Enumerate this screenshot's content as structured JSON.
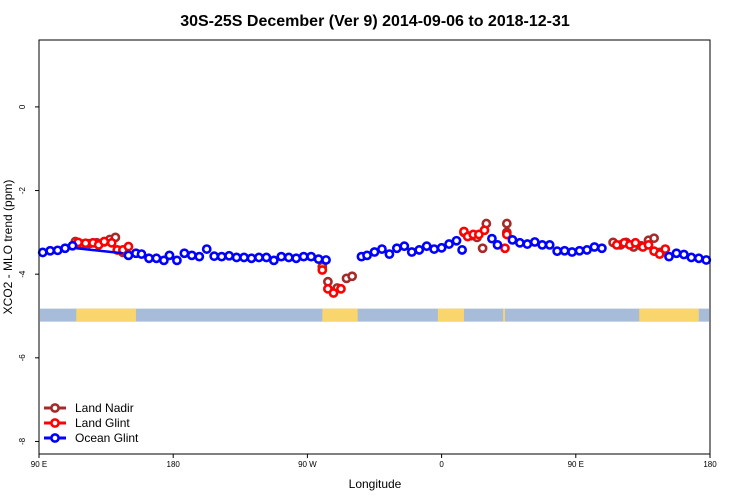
{
  "chart_data": {
    "type": "scatter",
    "title": "30S-25S December (Ver 9)   2014-09-06 to 2018-12-31",
    "xlabel": "Longitude",
    "ylabel": "XCO2 - MLO trend (ppm)",
    "xlim": [
      90,
      450
    ],
    "ylim": [
      -8.3,
      1.6
    ],
    "x_ticks": [
      {
        "value": 90,
        "label": "90 E"
      },
      {
        "value": 162,
        "label": "180"
      },
      {
        "value": 234,
        "label": "90 W"
      },
      {
        "value": 306,
        "label": "0"
      },
      {
        "value": 378,
        "label": "90 E"
      },
      {
        "value": 450,
        "label": "180"
      }
    ],
    "y_ticks": [
      {
        "value": 0,
        "label": "0"
      },
      {
        "value": -2,
        "label": "-2"
      },
      {
        "value": -4,
        "label": "-4"
      },
      {
        "value": -6,
        "label": "-6"
      },
      {
        "value": -8,
        "label": "-8"
      }
    ],
    "land_band": {
      "y": -4.98,
      "ocean_color": "#a7bcd8",
      "land_color": "#f9d56e",
      "land_segments": [
        [
          110,
          142
        ],
        [
          242,
          261
        ],
        [
          304,
          318
        ],
        [
          339,
          340
        ],
        [
          412,
          444
        ]
      ]
    },
    "legend": {
      "position": "bottom-left"
    },
    "series": [
      {
        "name": "Land Nadir",
        "color": "#a52a2a",
        "points": [
          [
            109.5,
            -3.22
          ],
          [
            113,
            -3.28
          ],
          [
            117,
            -3.27
          ],
          [
            121,
            -3.25
          ],
          [
            125,
            -3.23
          ],
          [
            128,
            -3.17
          ],
          [
            131,
            -3.12
          ],
          [
            135,
            -3.48
          ],
          [
            242,
            -3.82
          ],
          [
            245,
            -4.18
          ],
          [
            250,
            -4.33
          ],
          [
            255,
            -4.1
          ],
          [
            258,
            -4.05
          ],
          [
            318,
            -3.0
          ],
          [
            322,
            -3.08
          ],
          [
            325,
            -3.12
          ],
          [
            328,
            -3.38
          ],
          [
            330,
            -2.79
          ],
          [
            341,
            -2.79
          ],
          [
            341,
            -3.0
          ],
          [
            398,
            -3.24
          ],
          [
            402,
            -3.3
          ],
          [
            405,
            -3.24
          ],
          [
            409,
            -3.35
          ],
          [
            413,
            -3.32
          ],
          [
            417,
            -3.19
          ],
          [
            420,
            -3.14
          ],
          [
            423,
            -3.48
          ]
        ]
      },
      {
        "name": "Land Glint",
        "color": "#ff0000",
        "points": [
          [
            111,
            -3.24
          ],
          [
            115,
            -3.26
          ],
          [
            119,
            -3.25
          ],
          [
            122,
            -3.3
          ],
          [
            125,
            -3.22
          ],
          [
            129,
            -3.25
          ],
          [
            132,
            -3.42
          ],
          [
            135,
            -3.42
          ],
          [
            138,
            -3.34
          ],
          [
            242,
            -3.9
          ],
          [
            245,
            -4.35
          ],
          [
            248,
            -4.45
          ],
          [
            252,
            -4.35
          ],
          [
            318,
            -2.98
          ],
          [
            320,
            -3.1
          ],
          [
            323,
            -3.05
          ],
          [
            326,
            -3.05
          ],
          [
            329,
            -2.95
          ],
          [
            340,
            -3.38
          ],
          [
            341,
            -3.05
          ],
          [
            400,
            -3.3
          ],
          [
            404,
            -3.25
          ],
          [
            407,
            -3.3
          ],
          [
            410,
            -3.25
          ],
          [
            414,
            -3.35
          ],
          [
            417,
            -3.3
          ],
          [
            420,
            -3.45
          ],
          [
            423,
            -3.52
          ],
          [
            426,
            -3.4
          ]
        ]
      },
      {
        "name": "Ocean Glint",
        "color": "#0000ff",
        "line": [
          [
            110,
            -3.38
          ],
          [
            135,
            -3.5
          ]
        ],
        "points": [
          [
            92,
            -3.48
          ],
          [
            96,
            -3.44
          ],
          [
            100,
            -3.43
          ],
          [
            104,
            -3.38
          ],
          [
            108,
            -3.32
          ],
          [
            138,
            -3.55
          ],
          [
            142,
            -3.5
          ],
          [
            145,
            -3.52
          ],
          [
            149,
            -3.62
          ],
          [
            153,
            -3.62
          ],
          [
            157,
            -3.67
          ],
          [
            160,
            -3.55
          ],
          [
            164,
            -3.67
          ],
          [
            168,
            -3.5
          ],
          [
            172,
            -3.55
          ],
          [
            176,
            -3.58
          ],
          [
            180,
            -3.4
          ],
          [
            184,
            -3.57
          ],
          [
            188,
            -3.58
          ],
          [
            192,
            -3.56
          ],
          [
            196,
            -3.6
          ],
          [
            200,
            -3.6
          ],
          [
            204,
            -3.62
          ],
          [
            208,
            -3.6
          ],
          [
            212,
            -3.6
          ],
          [
            216,
            -3.67
          ],
          [
            220,
            -3.58
          ],
          [
            224,
            -3.6
          ],
          [
            228,
            -3.62
          ],
          [
            232,
            -3.58
          ],
          [
            236,
            -3.58
          ],
          [
            240,
            -3.64
          ],
          [
            244,
            -3.66
          ],
          [
            263,
            -3.58
          ],
          [
            266,
            -3.55
          ],
          [
            270,
            -3.47
          ],
          [
            274,
            -3.4
          ],
          [
            278,
            -3.52
          ],
          [
            282,
            -3.38
          ],
          [
            286,
            -3.33
          ],
          [
            290,
            -3.47
          ],
          [
            294,
            -3.42
          ],
          [
            298,
            -3.33
          ],
          [
            302,
            -3.4
          ],
          [
            306,
            -3.37
          ],
          [
            310,
            -3.28
          ],
          [
            314,
            -3.2
          ],
          [
            317,
            -3.42
          ],
          [
            333,
            -3.15
          ],
          [
            336,
            -3.3
          ],
          [
            344,
            -3.18
          ],
          [
            348,
            -3.25
          ],
          [
            352,
            -3.28
          ],
          [
            356,
            -3.23
          ],
          [
            360,
            -3.3
          ],
          [
            364,
            -3.3
          ],
          [
            368,
            -3.45
          ],
          [
            372,
            -3.44
          ],
          [
            376,
            -3.47
          ],
          [
            380,
            -3.44
          ],
          [
            384,
            -3.42
          ],
          [
            388,
            -3.35
          ],
          [
            392,
            -3.38
          ],
          [
            428,
            -3.58
          ],
          [
            432,
            -3.5
          ],
          [
            436,
            -3.53
          ],
          [
            440,
            -3.6
          ],
          [
            444,
            -3.62
          ],
          [
            448,
            -3.66
          ]
        ]
      }
    ]
  }
}
